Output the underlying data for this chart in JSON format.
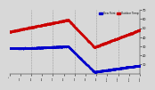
{
  "bg_color": "#d8d8d8",
  "plot_bg": "#d8d8d8",
  "temp_color": "#cc0000",
  "dew_color": "#0000cc",
  "ylim": [
    0,
    70
  ],
  "yticks": [
    10,
    20,
    30,
    40,
    50,
    60,
    70
  ],
  "vline_positions": [
    0.167,
    0.333,
    0.5,
    0.667,
    0.833
  ],
  "legend_labels": [
    "Outdoor Temp",
    "Dew Point"
  ],
  "xtick_count": 12,
  "marker_size": 0.8,
  "n_points": 1440
}
